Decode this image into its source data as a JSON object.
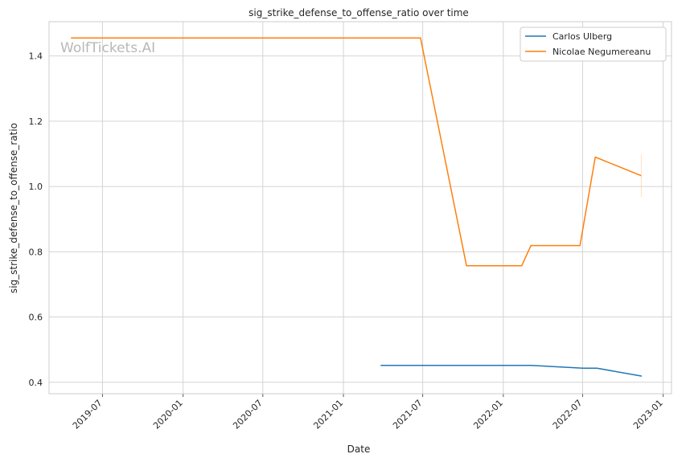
{
  "chart_data": {
    "type": "line",
    "title": "sig_strike_defense_to_offense_ratio over time",
    "xlabel": "Date",
    "ylabel": "sig_strike_defense_to_offense_ratio",
    "watermark": "WolfTickets.AI",
    "x_ticks": [
      "2019-07",
      "2020-01",
      "2020-07",
      "2021-01",
      "2021-07",
      "2022-01",
      "2022-07",
      "2023-01"
    ],
    "x_range": [
      "2019-03-01",
      "2023-01-20"
    ],
    "y_ticks": [
      "0.4",
      "0.6",
      "0.8",
      "1.0",
      "1.2",
      "1.4"
    ],
    "ylim": [
      0.365,
      1.505
    ],
    "grid": true,
    "legend": "top-right",
    "series": [
      {
        "name": "Carlos Ulberg",
        "color": "#1f77b4",
        "points": [
          [
            "2021-03-27",
            0.452
          ],
          [
            "2022-03-05",
            0.452
          ],
          [
            "2022-07-02",
            0.443
          ],
          [
            "2022-08-03",
            0.443
          ],
          [
            "2022-11-13",
            0.419
          ]
        ]
      },
      {
        "name": "Nicolae Negumereanu",
        "color": "#ff7f0e",
        "points": [
          [
            "2019-04-20",
            1.455
          ],
          [
            "2021-06-26",
            1.455
          ],
          [
            "2021-10-09",
            0.757
          ],
          [
            "2022-02-12",
            0.757
          ],
          [
            "2022-03-05",
            0.819
          ],
          [
            "2022-06-25",
            0.819
          ],
          [
            "2022-07-30",
            1.09
          ],
          [
            "2022-11-12",
            1.033
          ]
        ]
      }
    ]
  }
}
